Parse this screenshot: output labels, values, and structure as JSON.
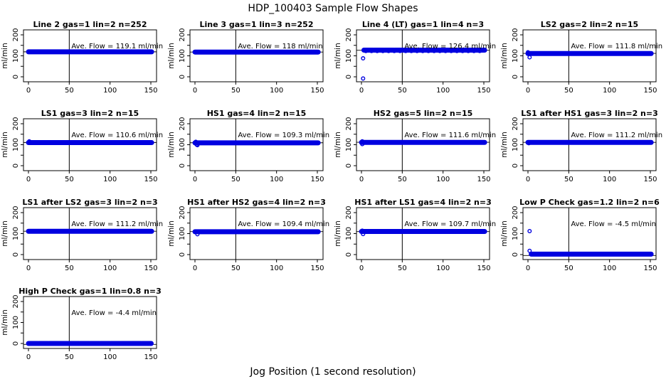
{
  "header": {
    "title": "HDP_100403  Sample Flow Shapes"
  },
  "footer": {
    "xlabel": "Jog Position (1 second resolution)"
  },
  "colors": {
    "points": "#0000E0",
    "average_line": "#000000",
    "axis": "#000000",
    "background": "#FFFFFF"
  },
  "axes": {
    "ylabel": "ml/min",
    "xticks": [
      0,
      50,
      100,
      150
    ],
    "yticks_all": [
      0,
      50,
      100,
      150,
      200
    ],
    "yticks_labeled": [
      0,
      100,
      200
    ],
    "vline_x": 50,
    "xlim": [
      -6,
      157
    ],
    "ylim": [
      -24,
      224
    ]
  },
  "chart_data": [
    {
      "type": "scatter",
      "title": "Line 2 gas=1 lin=2 n=252",
      "annotation": "Ave. Flow =  119.1  ml/min",
      "ave_flow": 119.1,
      "band": {
        "y": 119,
        "x1": 0,
        "x2": 151,
        "gapped": false
      },
      "outliers": [],
      "dash_row": null
    },
    {
      "type": "scatter",
      "title": "Line 3 gas=1 lin=3 n=252",
      "annotation": "Ave. Flow =  118  ml/min",
      "ave_flow": 118,
      "band": {
        "y": 118,
        "x1": 0,
        "x2": 151,
        "gapped": false
      },
      "outliers": [],
      "dash_row": null
    },
    {
      "type": "scatter",
      "title": "Line 4 (LT) gas=1 lin=4 n=3",
      "annotation": "Ave. Flow =  126.4  ml/min",
      "ave_flow": 126.4,
      "band": {
        "y": 127,
        "x1": 3,
        "x2": 151,
        "gapped": true
      },
      "outliers": [
        [
          2,
          88
        ],
        [
          2,
          -8
        ]
      ],
      "dash_row": {
        "y": 117,
        "x1": 4,
        "x2": 148
      }
    },
    {
      "type": "scatter",
      "title": "LS2 gas=2 lin=2 n=15",
      "annotation": "Ave. Flow =  111.8  ml/min",
      "ave_flow": 111.8,
      "band": {
        "y": 111,
        "x1": 0,
        "x2": 151,
        "gapped": false
      },
      "outliers": [
        [
          0,
          117
        ],
        [
          2,
          93
        ]
      ],
      "dash_row": null
    },
    {
      "type": "scatter",
      "title": "LS1 gas=3 lin=2 n=15",
      "annotation": "Ave. Flow =  110.6  ml/min",
      "ave_flow": 110.6,
      "band": {
        "y": 110,
        "x1": 0,
        "x2": 151,
        "gapped": false
      },
      "outliers": [
        [
          1,
          116
        ]
      ],
      "dash_row": null
    },
    {
      "type": "scatter",
      "title": "HS1 gas=4 lin=2 n=15",
      "annotation": "Ave. Flow =  109.3  ml/min",
      "ave_flow": 109.3,
      "band": {
        "y": 109,
        "x1": 0,
        "x2": 151,
        "gapped": false
      },
      "outliers": [
        [
          1,
          114
        ],
        [
          2,
          101
        ],
        [
          3,
          98
        ]
      ],
      "dash_row": null
    },
    {
      "type": "scatter",
      "title": "HS2 gas=5 lin=2 n=15",
      "annotation": "Ave. Flow =  111.6  ml/min",
      "ave_flow": 111.6,
      "band": {
        "y": 111,
        "x1": 0,
        "x2": 151,
        "gapped": false
      },
      "outliers": [
        [
          1,
          116
        ],
        [
          1,
          103
        ]
      ],
      "dash_row": null
    },
    {
      "type": "scatter",
      "title": "LS1 after HS1 gas=3 lin=2 n=3",
      "annotation": "Ave. Flow =  111.2  ml/min",
      "ave_flow": 111.2,
      "band": {
        "y": 111,
        "x1": 0,
        "x2": 151,
        "gapped": false
      },
      "outliers": [
        [
          1,
          107
        ]
      ],
      "dash_row": null
    },
    {
      "type": "scatter",
      "title": "LS1 after LS2 gas=3 lin=2 n=3",
      "annotation": "Ave. Flow =  111.2  ml/min",
      "ave_flow": 111.2,
      "band": {
        "y": 111,
        "x1": 0,
        "x2": 151,
        "gapped": false
      },
      "outliers": [],
      "dash_row": null
    },
    {
      "type": "scatter",
      "title": "HS1 after HS2 gas=4 lin=2 n=3",
      "annotation": "Ave. Flow =  109.4  ml/min",
      "ave_flow": 109.4,
      "band": {
        "y": 109,
        "x1": 0,
        "x2": 151,
        "gapped": false
      },
      "outliers": [
        [
          3,
          97
        ]
      ],
      "dash_row": null
    },
    {
      "type": "scatter",
      "title": "HS1 after LS1 gas=4 lin=2 n=3",
      "annotation": "Ave. Flow =  109.7  ml/min",
      "ave_flow": 109.7,
      "band": {
        "y": 110,
        "x1": 0,
        "x2": 151,
        "gapped": false
      },
      "outliers": [
        [
          1,
          114
        ],
        [
          2,
          98
        ]
      ],
      "dash_row": null
    },
    {
      "type": "scatter",
      "title": "Low P Check gas=1.2 lin=2 n=6",
      "annotation": "Ave. Flow =  -4.5  ml/min",
      "ave_flow": -4.5,
      "band": {
        "y": 2,
        "x1": 4,
        "x2": 151,
        "gapped": false
      },
      "outliers": [
        [
          2,
          112
        ],
        [
          2,
          18
        ]
      ],
      "dash_row": null
    },
    {
      "type": "scatter",
      "title": "High P Check gas=1 lin=0.8 n=3",
      "annotation": "Ave. Flow =  -4.4  ml/min",
      "ave_flow": -4.4,
      "band": {
        "y": 0,
        "x1": 0,
        "x2": 151,
        "gapped": true
      },
      "outliers": [],
      "dash_row": null
    }
  ]
}
